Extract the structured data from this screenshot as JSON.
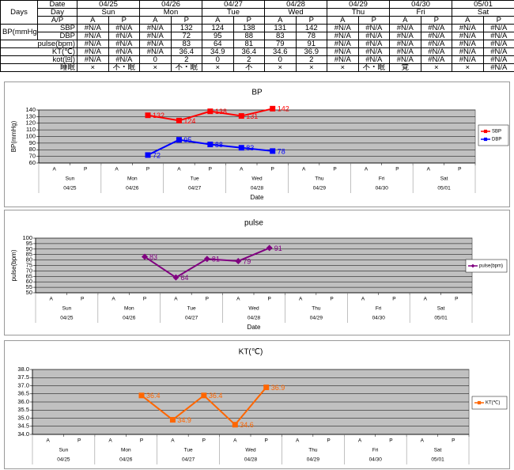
{
  "table": {
    "corner": "Days",
    "header_labels": [
      "Date",
      "Day",
      "A/P"
    ],
    "dates": [
      "04/25",
      "04/26",
      "04/27",
      "04/28",
      "04/29",
      "04/30",
      "05/01"
    ],
    "days": [
      "Sun",
      "Mon",
      "Tue",
      "Wed",
      "Thu",
      "Fri",
      "Sat"
    ],
    "periods": [
      "A",
      "P"
    ],
    "group_label": "BP(mmHg)",
    "rows": [
      {
        "label": "SBP",
        "cells": [
          "#N/A",
          "#N/A",
          "#N/A",
          "132",
          "124",
          "138",
          "131",
          "142",
          "#N/A",
          "#N/A",
          "#N/A",
          "#N/A",
          "#N/A",
          "#N/A"
        ]
      },
      {
        "label": "DBP",
        "cells": [
          "#N/A",
          "#N/A",
          "#N/A",
          "72",
          "95",
          "88",
          "83",
          "78",
          "#N/A",
          "#N/A",
          "#N/A",
          "#N/A",
          "#N/A",
          "#N/A"
        ]
      },
      {
        "label": "pulse(bpm)",
        "cells": [
          "#N/A",
          "#N/A",
          "#N/A",
          "83",
          "64",
          "81",
          "79",
          "91",
          "#N/A",
          "#N/A",
          "#N/A",
          "#N/A",
          "#N/A",
          "#N/A"
        ]
      },
      {
        "label": "KT(℃)",
        "cells": [
          "#N/A",
          "#N/A",
          "#N/A",
          "36.4",
          "34.9",
          "36.4",
          "34.6",
          "36.9",
          "#N/A",
          "#N/A",
          "#N/A",
          "#N/A",
          "#N/A",
          "#N/A"
        ]
      },
      {
        "label": "kot(回)",
        "cells": [
          "#N/A",
          "#N/A",
          "0",
          "2",
          "0",
          "2",
          "0",
          "2",
          "#N/A",
          "#N/A",
          "#N/A",
          "#N/A",
          "#N/A",
          "#N/A"
        ]
      },
      {
        "label": "睡眠",
        "cells": [
          "×",
          "不・眠",
          "×",
          "不・眠",
          "×",
          "不",
          "×",
          "×",
          "×",
          "不・眠",
          "覚",
          "×",
          "×",
          "#N/A"
        ]
      }
    ]
  },
  "chart_data": [
    {
      "type": "line",
      "title": "BP",
      "y_label": "BP(mmHg)",
      "x_label": "Date",
      "categories": [
        "A",
        "P",
        "A",
        "P",
        "A",
        "P",
        "A",
        "P",
        "A",
        "P",
        "A",
        "P",
        "A",
        "P"
      ],
      "days": [
        "Sun",
        "Mon",
        "Tue",
        "Wed",
        "Thu",
        "Fri",
        "Sat"
      ],
      "dates": [
        "04/25",
        "04/26",
        "04/27",
        "04/28",
        "04/29",
        "04/30",
        "05/01"
      ],
      "ylim": [
        60,
        140
      ],
      "yticks": [
        60,
        70,
        80,
        90,
        100,
        110,
        120,
        130,
        140
      ],
      "grid": true,
      "legend": "right",
      "series": [
        {
          "name": "SBP",
          "color": "#ff0000",
          "marker": "square",
          "values": [
            null,
            null,
            null,
            132,
            124,
            138,
            131,
            142,
            null,
            null,
            null,
            null,
            null,
            null
          ]
        },
        {
          "name": "DBP",
          "color": "#0000ff",
          "marker": "square",
          "values": [
            null,
            null,
            null,
            72,
            95,
            88,
            83,
            78,
            null,
            null,
            null,
            null,
            null,
            null
          ]
        }
      ]
    },
    {
      "type": "line",
      "title": "pulse",
      "y_label": "pulse(bpm)",
      "x_label": "Date",
      "categories": [
        "A",
        "P",
        "A",
        "P",
        "A",
        "P",
        "A",
        "P",
        "A",
        "P",
        "A",
        "P",
        "A",
        "P"
      ],
      "days": [
        "Sun",
        "Mon",
        "Tue",
        "Wed",
        "Thu",
        "Fri",
        "Sat"
      ],
      "dates": [
        "04/25",
        "04/26",
        "04/27",
        "04/28",
        "04/29",
        "04/30",
        "05/01"
      ],
      "ylim": [
        50,
        100
      ],
      "yticks": [
        50,
        55,
        60,
        65,
        70,
        75,
        80,
        85,
        90,
        95,
        100
      ],
      "grid": true,
      "legend": "right",
      "series": [
        {
          "name": "pulse(bpm)",
          "color": "#800080",
          "marker": "diamond",
          "values": [
            null,
            null,
            null,
            83,
            64,
            81,
            79,
            91,
            null,
            null,
            null,
            null,
            null,
            null
          ]
        }
      ]
    },
    {
      "type": "line",
      "title": "KT(℃)",
      "categories": [
        "A",
        "P",
        "A",
        "P",
        "A",
        "P",
        "A",
        "P",
        "A",
        "P",
        "A",
        "P",
        "A",
        "P"
      ],
      "days": [
        "Sun",
        "Mon",
        "Tue",
        "Wed",
        "Thu",
        "Fri",
        "Sat"
      ],
      "dates": [
        "04/25",
        "04/26",
        "04/27",
        "04/28",
        "04/29",
        "04/30",
        "05/01"
      ],
      "ylim": [
        34,
        38
      ],
      "yticks": [
        {
          "value": 34,
          "label": "34.0"
        },
        34.5,
        {
          "value": 35,
          "label": "35.0"
        },
        35.5,
        {
          "value": 36,
          "label": "36.0"
        },
        36.5,
        {
          "value": 37,
          "label": "37.0"
        },
        37.5,
        {
          "value": 38,
          "label": "38.0"
        }
      ],
      "grid": true,
      "legend": "right",
      "series": [
        {
          "name": "KT(℃)",
          "color": "#ff6600",
          "marker": "square",
          "values": [
            null,
            null,
            null,
            36.4,
            34.9,
            36.4,
            34.6,
            36.9,
            null,
            null,
            null,
            null,
            null,
            null
          ]
        }
      ]
    }
  ]
}
